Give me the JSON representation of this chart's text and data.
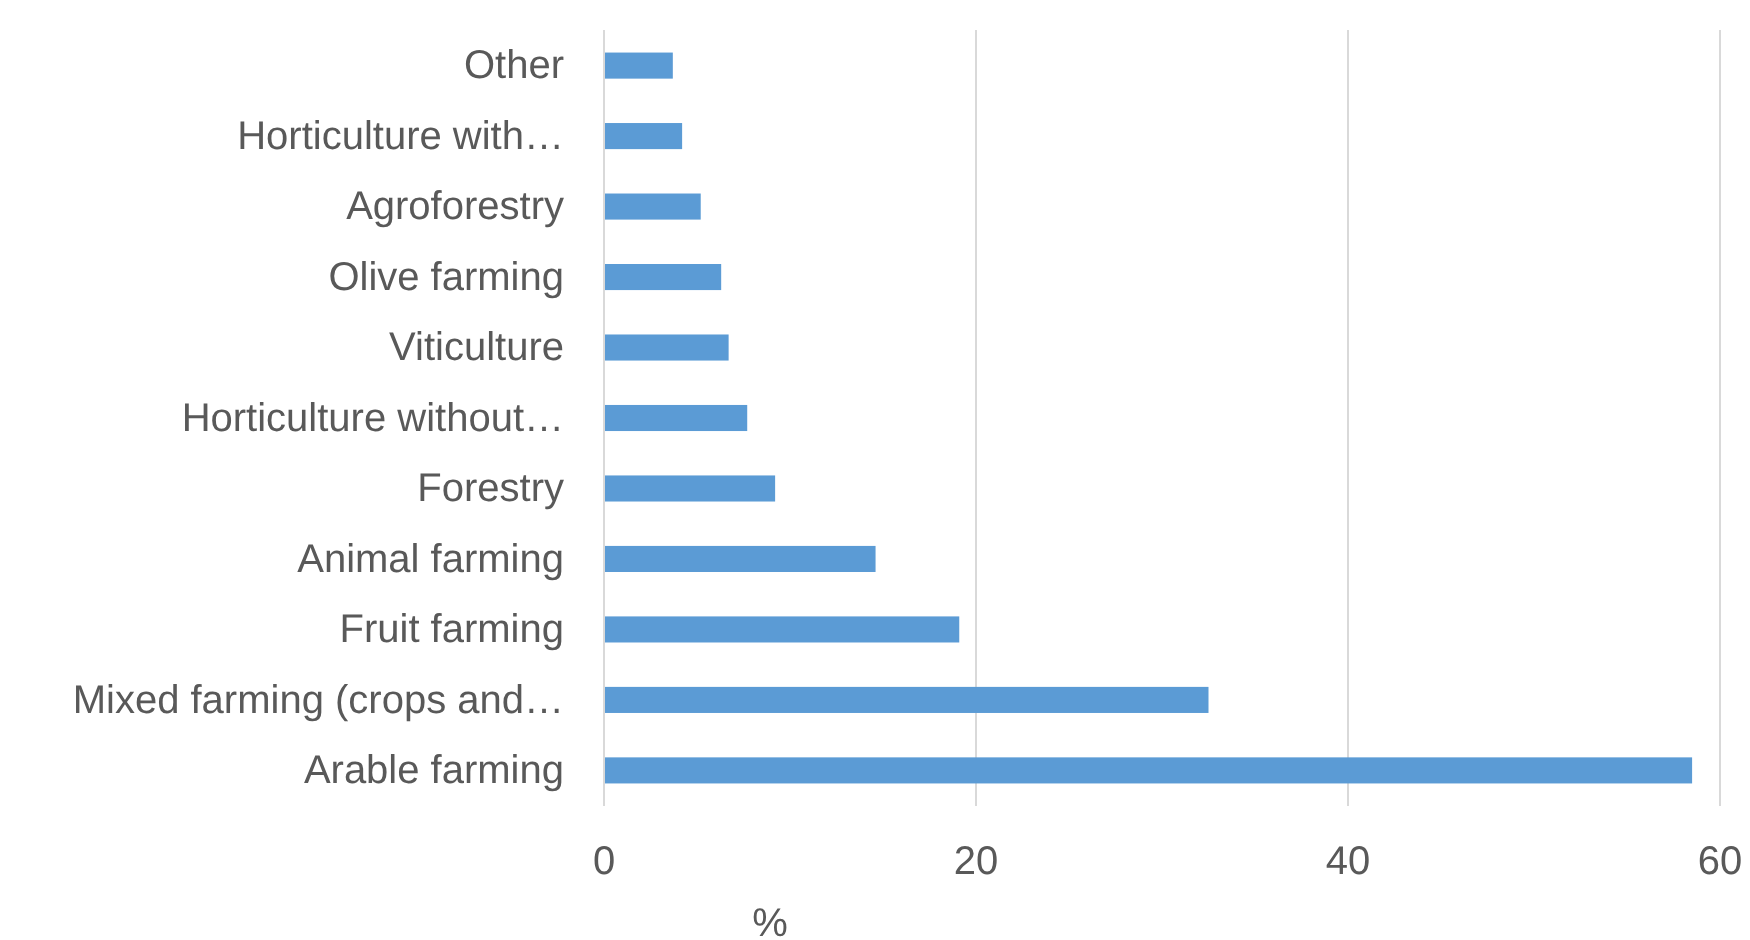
{
  "chart_data": {
    "type": "bar",
    "orientation": "horizontal",
    "xlabel": "%",
    "categories": [
      "Other",
      "Horticulture with…",
      "Agroforestry",
      "Olive farming",
      "Viticulture",
      "Horticulture without…",
      "Forestry",
      "Animal farming",
      "Fruit farming",
      "Mixed farming (crops and…",
      "Arable farming"
    ],
    "values": [
      3.7,
      4.2,
      5.2,
      6.3,
      6.7,
      7.7,
      9.2,
      14.6,
      19.1,
      32.5,
      58.5
    ],
    "color": "#5b9bd5",
    "xlim": [
      0,
      60
    ],
    "xticks": [
      0,
      20,
      40,
      60
    ],
    "grid": "x"
  }
}
